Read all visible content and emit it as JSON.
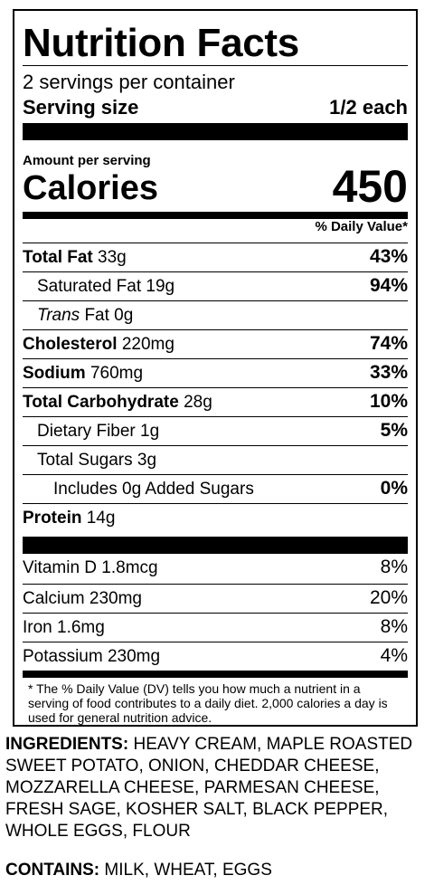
{
  "title": "Nutrition Facts",
  "servings_per_container": "2 servings per container",
  "serving_size": {
    "label": "Serving size",
    "value": "1/2 each"
  },
  "amount_per_serving": "Amount per serving",
  "calories": {
    "label": "Calories",
    "value": "450"
  },
  "daily_value_header": "% Daily Value*",
  "nutrients": [
    {
      "name": "Total Fat",
      "amount": "33g",
      "dv": "43%"
    },
    {
      "name": "Saturated Fat",
      "amount": "19g",
      "dv": "94%"
    },
    {
      "name": "Trans",
      "amount": "Fat 0g",
      "dv": ""
    },
    {
      "name": "Cholesterol",
      "amount": "220mg",
      "dv": "74%"
    },
    {
      "name": "Sodium",
      "amount": "760mg",
      "dv": "33%"
    },
    {
      "name": "Total Carbohydrate",
      "amount": "28g",
      "dv": "10%"
    },
    {
      "name": "Dietary Fiber",
      "amount": "1g",
      "dv": "5%"
    },
    {
      "name": "Total Sugars",
      "amount": "3g",
      "dv": ""
    },
    {
      "name": "Includes 0g Added Sugars",
      "amount": "",
      "dv": "0%"
    },
    {
      "name": "Protein",
      "amount": "14g",
      "dv": ""
    }
  ],
  "vitamins": [
    {
      "name": "Vitamin D 1.8mcg",
      "dv": "8%"
    },
    {
      "name": "Calcium 230mg",
      "dv": "20%"
    },
    {
      "name": "Iron 1.6mg",
      "dv": "8%"
    },
    {
      "name": "Potassium 230mg",
      "dv": "4%"
    }
  ],
  "footnote": "* The % Daily Value (DV) tells you how much a nutrient in a serving of food contributes to a daily diet. 2,000 calories a day is used for general nutrition advice.",
  "ingredients": {
    "label": "INGREDIENTS:",
    "text": "HEAVY CREAM, MAPLE ROASTED SWEET POTATO, ONION, CHEDDAR CHEESE, MOZZARELLA CHEESE, PARMESAN CHEESE, FRESH SAGE, KOSHER SALT, BLACK PEPPER, WHOLE EGGS, FLOUR"
  },
  "contains": {
    "label": "CONTAINS:",
    "text": "MILK, WHEAT, EGGS"
  }
}
